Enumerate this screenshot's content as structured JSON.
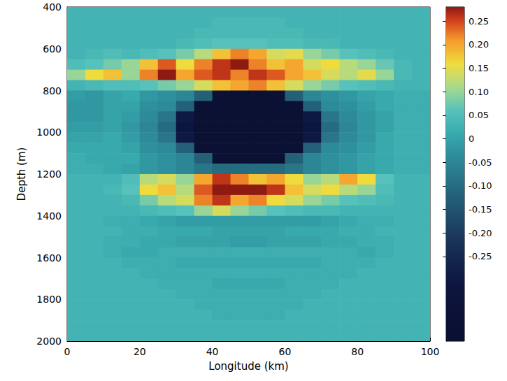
{
  "chart_data": {
    "type": "heatmap",
    "xlabel": "Longitude (km)",
    "ylabel": "Depth (m)",
    "xlim": [
      0,
      100
    ],
    "xticks": [
      0,
      20,
      40,
      60,
      80,
      100
    ],
    "ylim": [
      400,
      2000
    ],
    "yticks": [
      400,
      600,
      800,
      1000,
      1200,
      1400,
      1600,
      1800,
      2000
    ],
    "x": [
      2.5,
      7.5,
      12.5,
      17.5,
      22.5,
      27.5,
      32.5,
      37.5,
      42.5,
      47.5,
      52.5,
      57.5,
      62.5,
      67.5,
      72.5,
      77.5,
      82.5,
      87.5,
      92.5,
      97.5
    ],
    "y": [
      425,
      475,
      525,
      575,
      625,
      675,
      725,
      775,
      825,
      875,
      925,
      975,
      1025,
      1075,
      1125,
      1175,
      1225,
      1275,
      1325,
      1375,
      1425,
      1475,
      1525,
      1575,
      1625,
      1675,
      1725,
      1775,
      1825,
      1875,
      1925,
      1975
    ],
    "values": [
      [
        0.03,
        0.03,
        0.03,
        0.03,
        0.03,
        0.03,
        0.03,
        0.03,
        0.03,
        0.03,
        0.03,
        0.03,
        0.03,
        0.03,
        0.03,
        0.03,
        0.03,
        0.03,
        0.03,
        0.03
      ],
      [
        0.03,
        0.03,
        0.03,
        0.03,
        0.03,
        0.03,
        0.03,
        0.03,
        0.04,
        0.04,
        0.04,
        0.04,
        0.03,
        0.03,
        0.03,
        0.03,
        0.03,
        0.03,
        0.03,
        0.03
      ],
      [
        0.03,
        0.03,
        0.03,
        0.03,
        0.03,
        0.03,
        0.03,
        0.04,
        0.04,
        0.04,
        0.04,
        0.04,
        0.04,
        0.03,
        0.03,
        0.03,
        0.03,
        0.03,
        0.03,
        0.03
      ],
      [
        0.03,
        0.03,
        0.03,
        0.03,
        0.03,
        0.03,
        0.04,
        0.05,
        0.06,
        0.06,
        0.06,
        0.05,
        0.05,
        0.04,
        0.04,
        0.03,
        0.03,
        0.03,
        0.03,
        0.03
      ],
      [
        0.03,
        0.04,
        0.05,
        0.04,
        0.05,
        0.06,
        0.08,
        0.12,
        0.18,
        0.22,
        0.2,
        0.14,
        0.15,
        0.1,
        0.08,
        0.06,
        0.05,
        0.04,
        0.03,
        0.03
      ],
      [
        0.05,
        0.06,
        0.08,
        0.1,
        0.18,
        0.24,
        0.16,
        0.22,
        0.26,
        0.28,
        0.22,
        0.18,
        0.2,
        0.14,
        0.16,
        0.12,
        0.1,
        0.07,
        0.04,
        0.03
      ],
      [
        0.1,
        0.16,
        0.18,
        0.1,
        0.22,
        0.28,
        0.2,
        0.24,
        0.26,
        0.22,
        0.26,
        0.24,
        0.2,
        0.18,
        0.14,
        0.12,
        0.15,
        0.1,
        0.04,
        0.03
      ],
      [
        0.03,
        0.04,
        0.05,
        0.05,
        0.06,
        0.08,
        0.1,
        0.14,
        0.18,
        0.2,
        0.22,
        0.18,
        0.14,
        0.1,
        0.08,
        0.06,
        0.05,
        0.04,
        0.03,
        0.03
      ],
      [
        -0.01,
        -0.02,
        0,
        0.01,
        -0.02,
        -0.03,
        -0.05,
        -0.12,
        -0.4,
        -0.4,
        -0.4,
        -0.4,
        -0.12,
        -0.05,
        -0.03,
        -0.02,
        0,
        0.01,
        0.02,
        0.02
      ],
      [
        -0.02,
        -0.02,
        0,
        0,
        -0.03,
        -0.04,
        -0.12,
        -0.4,
        -0.4,
        -0.4,
        -0.4,
        -0.4,
        -0.4,
        -0.12,
        -0.04,
        -0.03,
        -0.01,
        0.01,
        0.02,
        0.02
      ],
      [
        -0.02,
        -0.02,
        0,
        -0.01,
        -0.04,
        -0.08,
        -0.3,
        -0.4,
        -0.4,
        -0.4,
        -0.4,
        -0.4,
        -0.4,
        -0.3,
        -0.08,
        -0.04,
        -0.02,
        0,
        0.02,
        0.02
      ],
      [
        -0.01,
        -0.01,
        0,
        -0.02,
        -0.05,
        -0.1,
        -0.32,
        -0.4,
        -0.4,
        -0.4,
        -0.4,
        -0.4,
        -0.4,
        -0.32,
        -0.1,
        -0.05,
        -0.02,
        0,
        0.02,
        0.02
      ],
      [
        0,
        0,
        0.01,
        -0.01,
        -0.04,
        -0.08,
        -0.3,
        -0.4,
        -0.4,
        -0.4,
        -0.4,
        -0.4,
        -0.4,
        -0.3,
        -0.08,
        -0.04,
        -0.02,
        0.01,
        0.02,
        0.02
      ],
      [
        0.01,
        0.01,
        0.01,
        0,
        -0.03,
        -0.04,
        -0.12,
        -0.4,
        -0.4,
        -0.4,
        -0.4,
        -0.4,
        -0.4,
        -0.12,
        -0.04,
        -0.03,
        -0.01,
        0.01,
        0.02,
        0.02
      ],
      [
        0.02,
        0.01,
        0.01,
        0.01,
        -0.02,
        -0.03,
        -0.05,
        -0.12,
        -0.4,
        -0.4,
        -0.4,
        -0.4,
        -0.12,
        -0.05,
        -0.03,
        -0.02,
        0,
        0.01,
        0.02,
        0.02
      ],
      [
        0.02,
        0.02,
        0.01,
        0,
        -0.02,
        -0.03,
        -0.05,
        -0.08,
        -0.1,
        -0.1,
        -0.1,
        -0.1,
        -0.08,
        -0.05,
        -0.03,
        -0.02,
        0,
        0.01,
        0.02,
        0.02
      ],
      [
        0.03,
        0.03,
        0.03,
        0.05,
        0.12,
        0.14,
        0.1,
        0.2,
        0.26,
        0.22,
        0.18,
        0.2,
        0.16,
        0.1,
        0.12,
        0.2,
        0.16,
        0.06,
        0.03,
        0.03
      ],
      [
        0.03,
        0.03,
        0.04,
        0.06,
        0.16,
        0.18,
        0.12,
        0.24,
        0.28,
        0.28,
        0.28,
        0.26,
        0.18,
        0.14,
        0.16,
        0.12,
        0.1,
        0.05,
        0.03,
        0.03
      ],
      [
        0.03,
        0.03,
        0.03,
        0.04,
        0.08,
        0.12,
        0.14,
        0.22,
        0.26,
        0.2,
        0.22,
        0.16,
        0.14,
        0.1,
        0.08,
        0.06,
        0.05,
        0.04,
        0.03,
        0.03
      ],
      [
        0.03,
        0.03,
        0.03,
        0.03,
        0.04,
        0.05,
        0.06,
        0.1,
        0.14,
        0.1,
        0.08,
        0.06,
        0.05,
        0.04,
        0.04,
        0.03,
        0.03,
        0.03,
        0.03,
        0.03
      ],
      [
        0.03,
        0.03,
        0.02,
        0.02,
        0.01,
        0,
        -0.01,
        -0.01,
        -0.01,
        -0.01,
        -0.01,
        -0.01,
        -0.01,
        -0.01,
        0,
        0.01,
        0.02,
        0.02,
        0.03,
        0.03
      ],
      [
        0.03,
        0.03,
        0.03,
        0.02,
        0.02,
        0.01,
        0.01,
        0.01,
        0,
        0,
        0,
        0,
        0.01,
        0.01,
        0.01,
        0.02,
        0.02,
        0.03,
        0.03,
        0.03
      ],
      [
        0.03,
        0.03,
        0.02,
        0.02,
        0.01,
        0.01,
        0,
        0,
        0,
        -0.01,
        -0.01,
        0,
        0,
        0,
        0.01,
        0.01,
        0.02,
        0.02,
        0.03,
        0.03
      ],
      [
        0.03,
        0.03,
        0.02,
        0.01,
        0.01,
        0.02,
        0.02,
        0.02,
        0.02,
        0.02,
        0.02,
        0.02,
        0.02,
        0.02,
        0.02,
        0.02,
        0.01,
        0.02,
        0.03,
        0.03
      ],
      [
        0.03,
        0.03,
        0.03,
        0.02,
        0.02,
        0.02,
        0.01,
        0.01,
        0.01,
        0.01,
        0.01,
        0.01,
        0.01,
        0.01,
        0.02,
        0.02,
        0.02,
        0.03,
        0.03,
        0.03
      ],
      [
        0.03,
        0.03,
        0.03,
        0.03,
        0.02,
        0.02,
        0.02,
        0.02,
        0.02,
        0.02,
        0.02,
        0.02,
        0.02,
        0.02,
        0.02,
        0.02,
        0.03,
        0.03,
        0.03,
        0.03
      ],
      [
        0.03,
        0.03,
        0.03,
        0.03,
        0.03,
        0.02,
        0.02,
        0.02,
        0.01,
        0.01,
        0.01,
        0.01,
        0.02,
        0.02,
        0.02,
        0.03,
        0.03,
        0.03,
        0.03,
        0.03
      ],
      [
        0.03,
        0.03,
        0.03,
        0.03,
        0.03,
        0.03,
        0.02,
        0.02,
        0.02,
        0.02,
        0.02,
        0.02,
        0.02,
        0.02,
        0.03,
        0.03,
        0.03,
        0.03,
        0.03,
        0.03
      ],
      [
        0.03,
        0.03,
        0.03,
        0.03,
        0.03,
        0.03,
        0.03,
        0.02,
        0.02,
        0.02,
        0.02,
        0.02,
        0.02,
        0.03,
        0.03,
        0.03,
        0.03,
        0.03,
        0.03,
        0.03
      ],
      [
        0.03,
        0.03,
        0.03,
        0.03,
        0.03,
        0.03,
        0.03,
        0.03,
        0.02,
        0.02,
        0.02,
        0.02,
        0.03,
        0.03,
        0.03,
        0.03,
        0.03,
        0.03,
        0.03,
        0.03
      ],
      [
        0.03,
        0.03,
        0.03,
        0.03,
        0.03,
        0.03,
        0.03,
        0.03,
        0.03,
        0.03,
        0.03,
        0.03,
        0.03,
        0.03,
        0.03,
        0.03,
        0.03,
        0.03,
        0.03,
        0.03
      ],
      [
        0.03,
        0.03,
        0.03,
        0.03,
        0.03,
        0.03,
        0.03,
        0.03,
        0.03,
        0.03,
        0.03,
        0.03,
        0.03,
        0.03,
        0.03,
        0.03,
        0.03,
        0.03,
        0.03,
        0.03
      ]
    ],
    "colorbar_range": [
      -0.43,
      0.28
    ],
    "colorbar_ticks": [
      0.25,
      {
        "value": 0.2,
        "label": "0.20"
      },
      0.15,
      {
        "value": 0.1,
        "label": "0.10"
      },
      0.05,
      0,
      -0.05,
      {
        "value": -0.1,
        "label": "-0.10"
      },
      -0.15,
      {
        "value": -0.2,
        "label": "-0.20"
      },
      -0.25
    ]
  }
}
